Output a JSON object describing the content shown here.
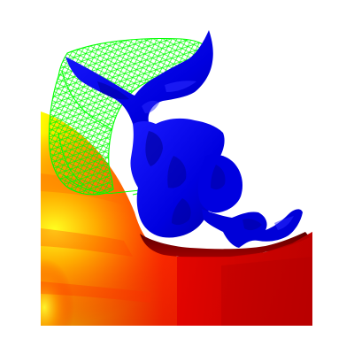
{
  "scene": {
    "background": "#ffffff",
    "heat_colors": [
      "#ffff00",
      "#ffa000",
      "#ff2a00",
      "#d40000",
      "#8a0000"
    ],
    "blob_color": "#0000e6",
    "blob_highlight": "#1a1aff",
    "blob_shadow": "#00008c",
    "wireframe_color": "#00ff00"
  }
}
